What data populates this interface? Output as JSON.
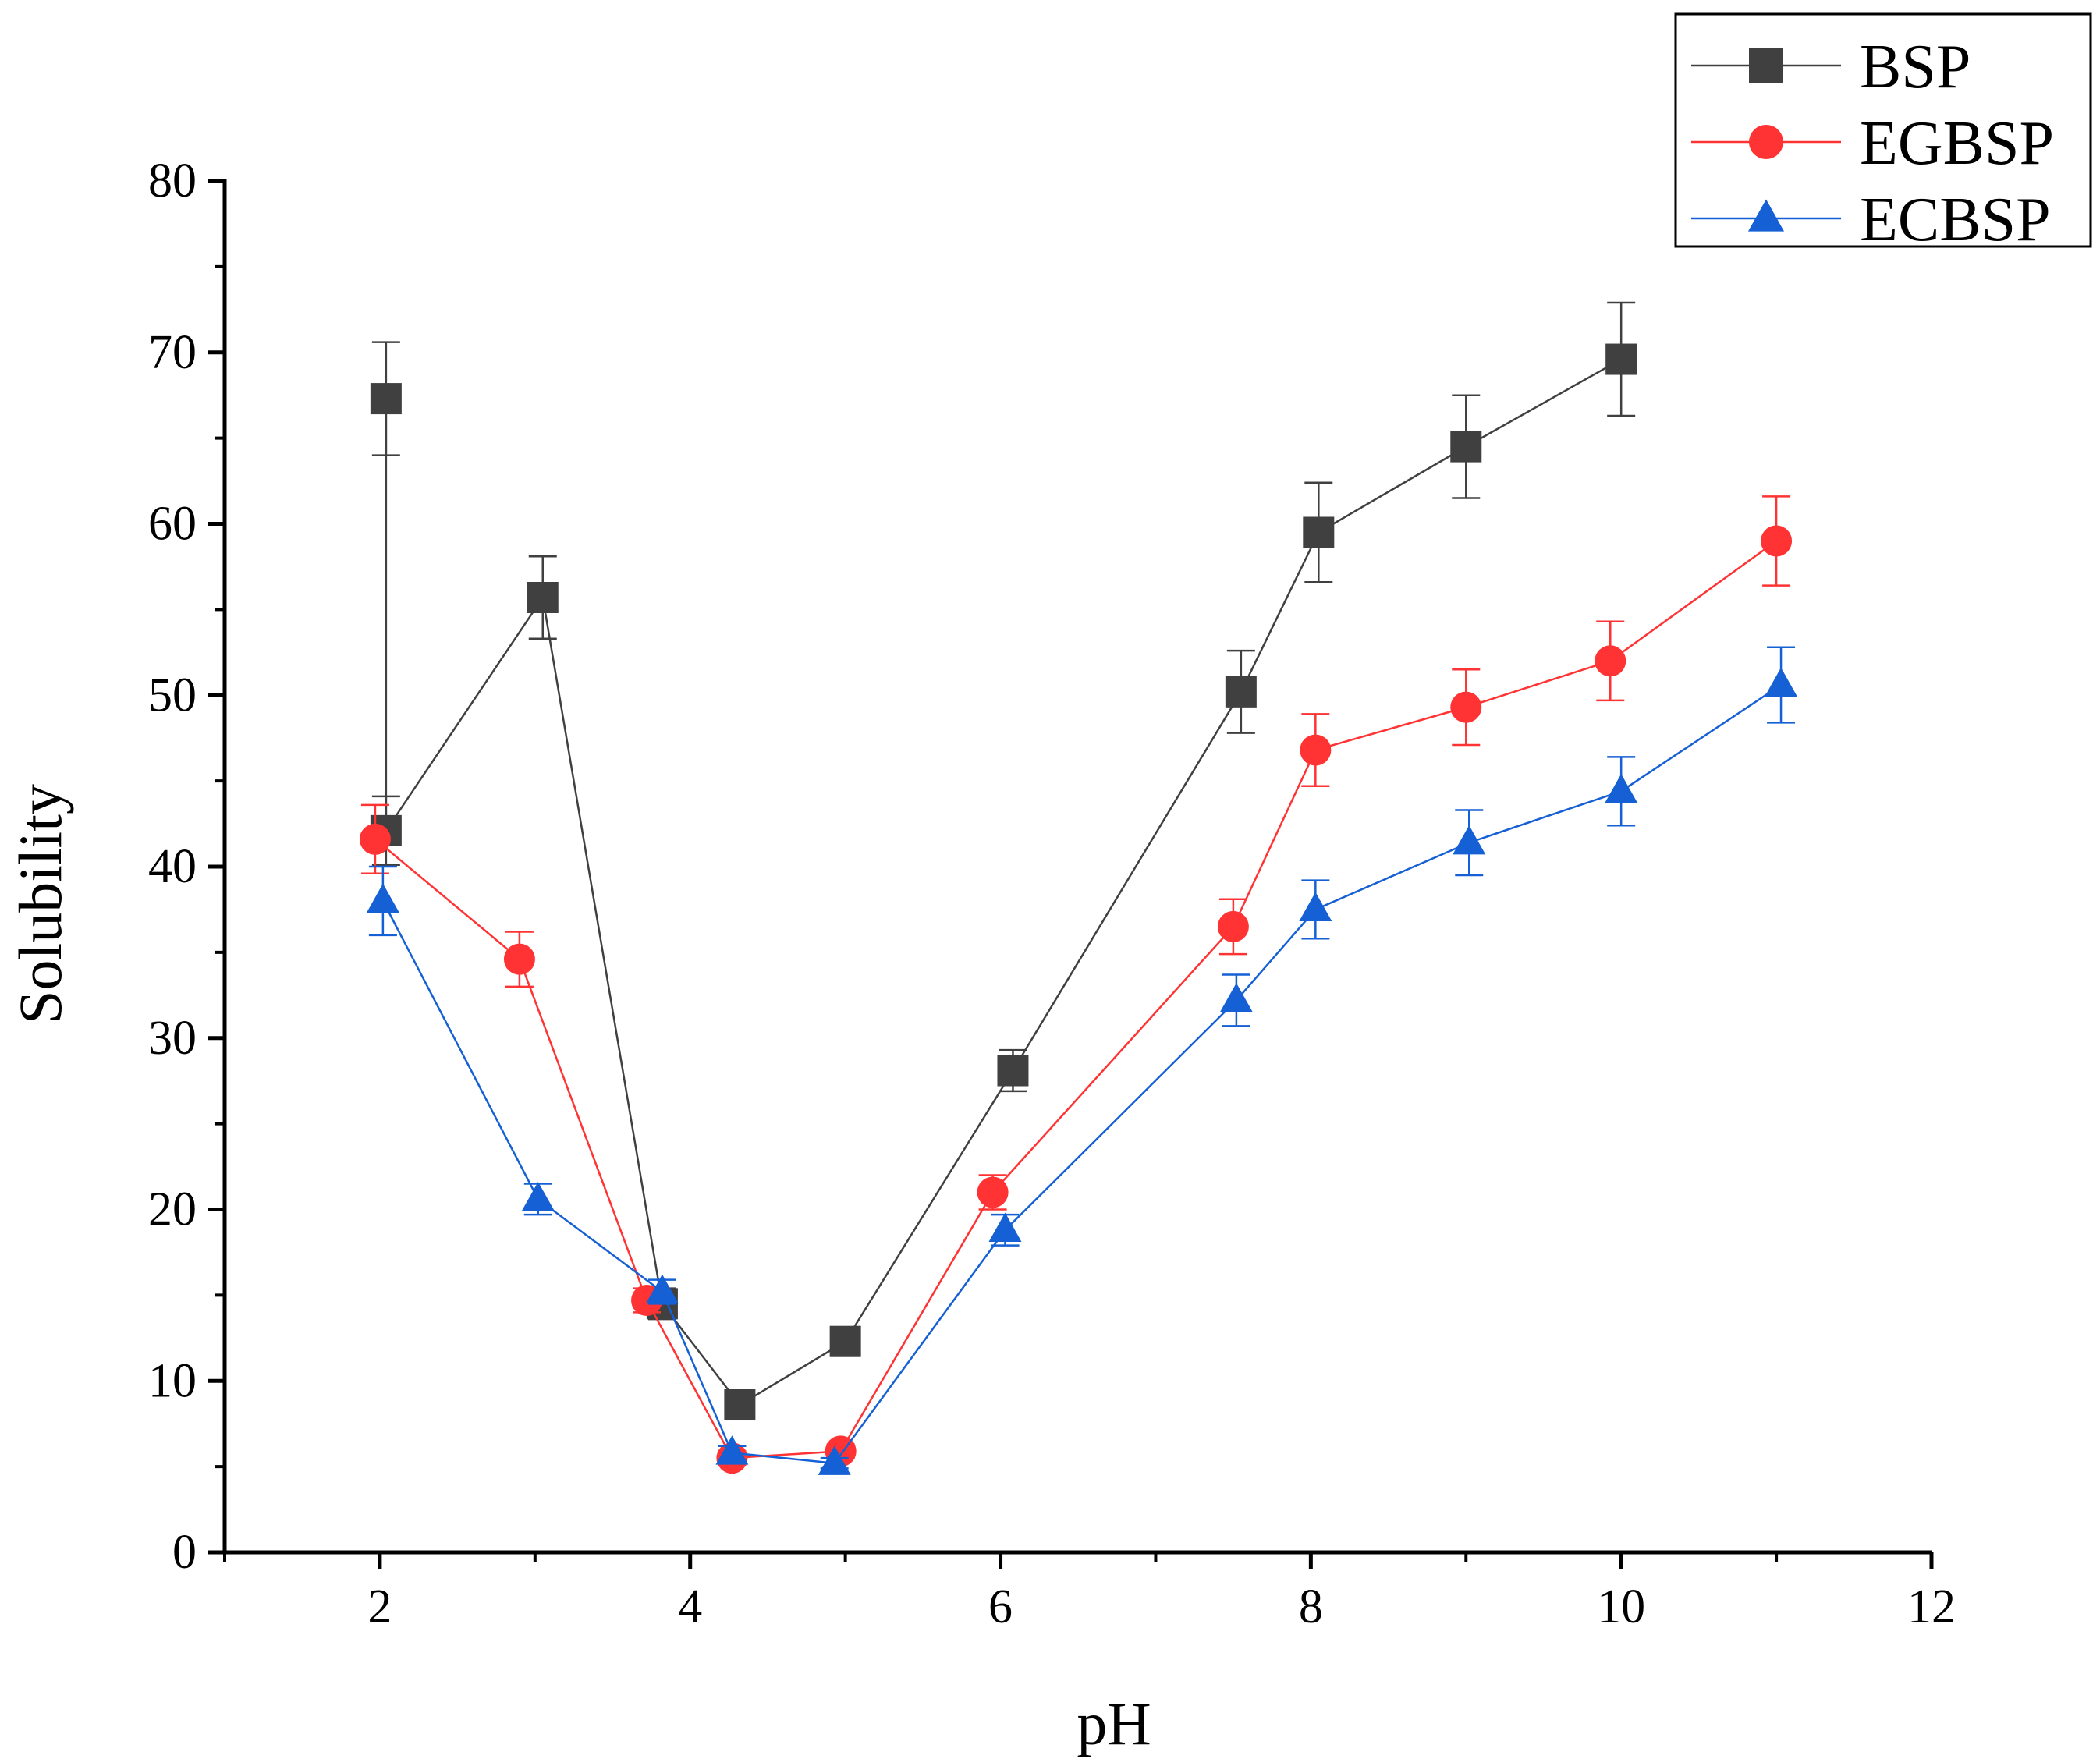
{
  "chart_data": {
    "type": "line",
    "title": "",
    "xlabel": "pH",
    "ylabel": "Solubility",
    "xlim": [
      1,
      12
    ],
    "ylim": [
      0,
      80
    ],
    "xticks": [
      2,
      4,
      6,
      8,
      10,
      12
    ],
    "yticks": [
      0,
      10,
      20,
      30,
      40,
      50,
      60,
      70,
      80
    ],
    "grid": false,
    "legend_position": "top-right",
    "series": [
      {
        "name": "BSP",
        "color": "#404040",
        "marker": "square",
        "x": [
          2.04,
          2.04,
          3.05,
          3.82,
          4.32,
          5.0,
          6.08,
          7.55,
          8.05,
          9.0,
          10.0
        ],
        "y": [
          67.3,
          42.1,
          55.7,
          14.5,
          8.6,
          12.3,
          28.1,
          50.2,
          59.5,
          64.5,
          69.6
        ],
        "err": [
          3.3,
          2.0,
          2.4,
          0.9,
          0.5,
          0.5,
          1.2,
          2.4,
          2.9,
          3.0,
          3.3
        ]
      },
      {
        "name": "EGBSP",
        "color": "#ff3333",
        "marker": "circle",
        "x": [
          1.97,
          2.9,
          3.72,
          4.27,
          4.97,
          5.95,
          7.5,
          8.03,
          9.0,
          9.93,
          11.0
        ],
        "y": [
          41.6,
          34.6,
          14.7,
          5.5,
          5.9,
          21.0,
          36.5,
          46.8,
          49.3,
          52.0,
          59.0
        ],
        "err": [
          2.0,
          1.6,
          0.7,
          0.4,
          0.4,
          1.0,
          1.6,
          2.1,
          2.2,
          2.3,
          2.6
        ]
      },
      {
        "name": "ECBSP",
        "color": "#1560d4",
        "marker": "triangle",
        "x": [
          2.02,
          3.02,
          3.82,
          4.27,
          4.93,
          6.03,
          7.52,
          8.03,
          9.02,
          10.0,
          11.03
        ],
        "y": [
          38.0,
          20.6,
          15.2,
          5.8,
          5.2,
          18.8,
          32.2,
          37.5,
          41.4,
          44.4,
          50.6
        ],
        "err": [
          2.0,
          0.9,
          0.7,
          0.4,
          0.3,
          0.9,
          1.5,
          1.7,
          1.9,
          2.0,
          2.2
        ]
      }
    ]
  }
}
